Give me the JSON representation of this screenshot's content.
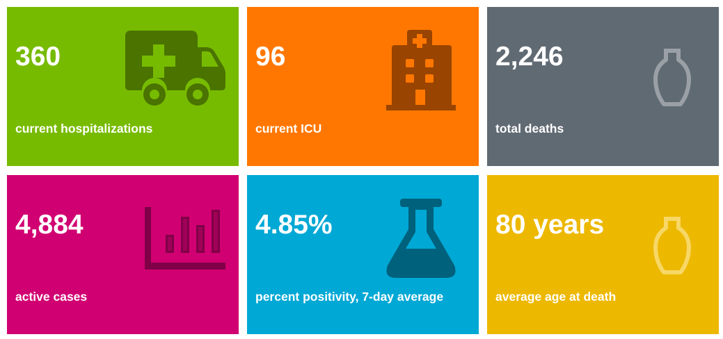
{
  "tiles": [
    {
      "value": "360",
      "label": "current hospitalizations",
      "color": "#77BB00",
      "icon": "ambulance-icon"
    },
    {
      "value": "96",
      "label": "current ICU",
      "color": "#FF7700",
      "icon": "hospital-icon"
    },
    {
      "value": "2,246",
      "label": "total deaths",
      "color": "#606A73",
      "icon": "urn-icon"
    },
    {
      "value": "4,884",
      "label": "active cases",
      "color": "#D10072",
      "icon": "bar-chart-icon"
    },
    {
      "value": "4.85%",
      "label": "percent positivity, 7-day average",
      "color": "#00A8D5",
      "icon": "flask-icon"
    },
    {
      "value": "80 years",
      "label": "average age at death",
      "color": "#EDB800",
      "icon": "urn-icon"
    }
  ]
}
